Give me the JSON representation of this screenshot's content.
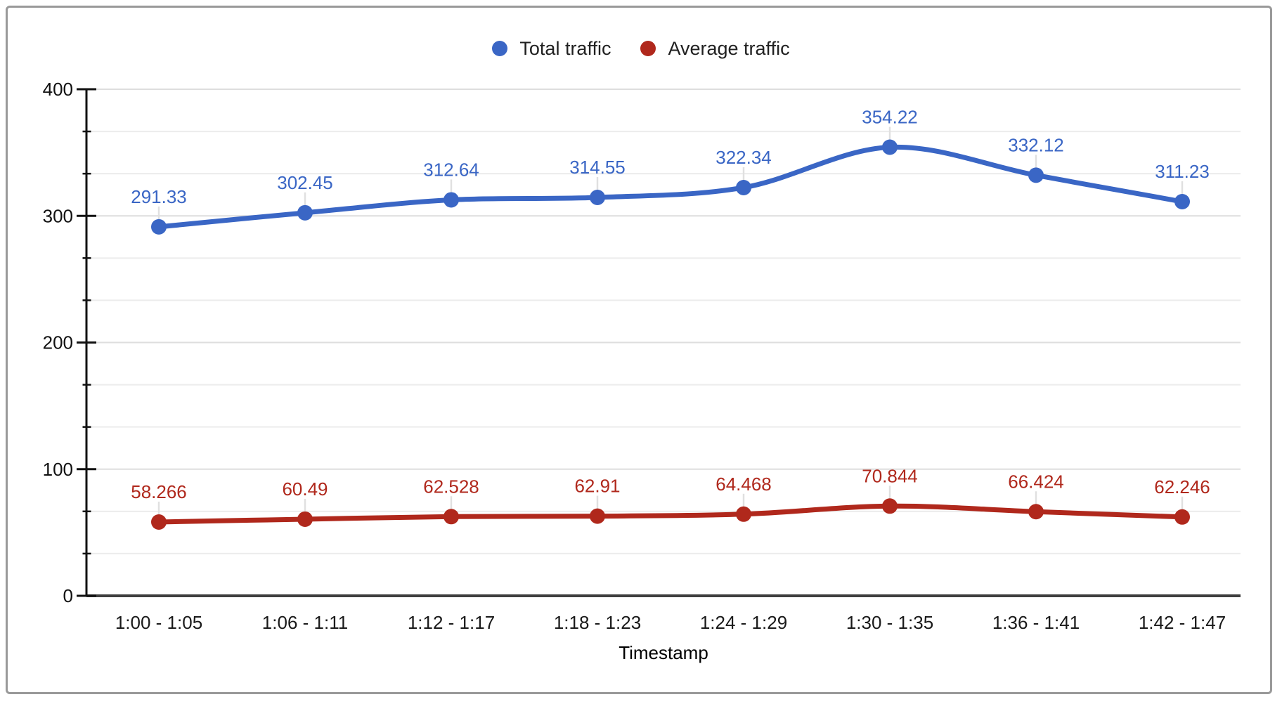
{
  "chart_data": {
    "type": "line",
    "smooth": true,
    "point_markers": true,
    "data_labels": true,
    "xlabel": "Timestamp",
    "ylabel": "",
    "ylim": [
      0,
      400
    ],
    "y_major_ticks": [
      0,
      100,
      200,
      300,
      400
    ],
    "y_minor_divisions": 3,
    "grid": true,
    "legend_position": "top",
    "categories": [
      "1:00 - 1:05",
      "1:06 - 1:11",
      "1:12 - 1:17",
      "1:18 - 1:23",
      "1:24 - 1:29",
      "1:30 - 1:35",
      "1:36 - 1:41",
      "1:42 - 1:47"
    ],
    "series": [
      {
        "name": "Total traffic",
        "color": "#3A66C5",
        "values": [
          291.33,
          302.45,
          312.64,
          314.55,
          322.34,
          354.22,
          332.12,
          311.23
        ]
      },
      {
        "name": "Average traffic",
        "color": "#B0281C",
        "values": [
          58.266,
          60.49,
          62.528,
          62.91,
          64.468,
          70.844,
          66.424,
          62.246
        ]
      }
    ]
  },
  "colors": {
    "background": "#FFFFFF",
    "frame_border": "#999999",
    "grid_major": "#DEDEDE",
    "grid_minor": "#ECECEC",
    "axis_line": "#111111",
    "tick_mark": "#111111",
    "baseline": "#3F3F3F",
    "tick_label": "#111111",
    "x_tick_label": "#1A1A1A",
    "legend_text": "#212121",
    "label_stem": "#E0E0E0"
  }
}
